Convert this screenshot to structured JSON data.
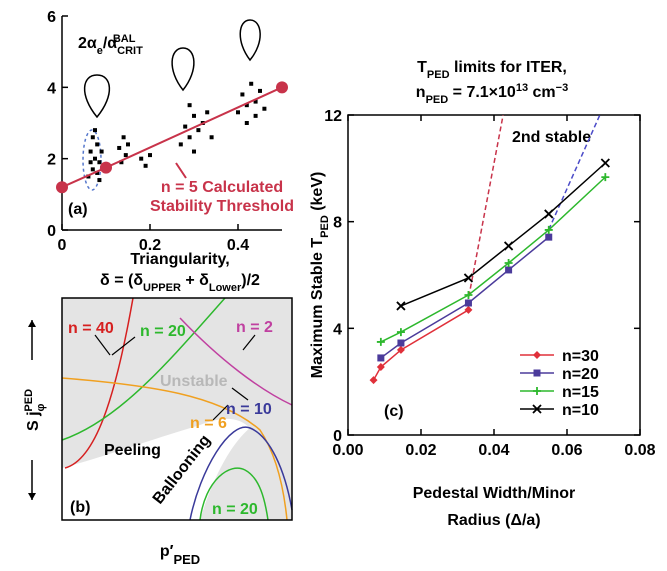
{
  "chart_data": [
    {
      "type": "scatter",
      "title_parts": [
        "2α",
        "e",
        "/α",
        "CRIT",
        "BAL"
      ],
      "x": [
        0.06,
        0.065,
        0.07,
        0.07,
        0.075,
        0.08,
        0.08,
        0.085,
        0.09,
        0.065,
        0.075,
        0.085,
        0.13,
        0.135,
        0.14,
        0.145,
        0.15,
        0.18,
        0.19,
        0.2,
        0.27,
        0.28,
        0.29,
        0.3,
        0.3,
        0.31,
        0.32,
        0.33,
        0.34,
        0.29,
        0.4,
        0.41,
        0.42,
        0.43,
        0.44,
        0.45,
        0.46,
        0.42,
        0.44
      ],
      "y": [
        1.5,
        2.2,
        1.7,
        2.6,
        2.0,
        1.6,
        2.4,
        1.9,
        2.2,
        1.9,
        2.8,
        1.4,
        2.3,
        1.9,
        2.6,
        2.1,
        2.4,
        2.0,
        1.8,
        2.1,
        2.4,
        2.9,
        2.6,
        3.2,
        2.2,
        2.8,
        3.0,
        3.3,
        2.6,
        3.5,
        3.3,
        3.8,
        3.0,
        4.1,
        3.6,
        3.9,
        3.4,
        3.5,
        3.2
      ],
      "color": "#000000",
      "threshold": {
        "x": [
          0,
          0.1,
          0.5
        ],
        "y": [
          1.2,
          1.75,
          4.0
        ],
        "color": "#c8334a"
      },
      "annotation": [
        "n = 5 Calculated",
        "Stability Threshold"
      ],
      "panel_label": "(a)",
      "xlabel": "Triangularity,",
      "xlabel_parts": [
        "δ = (δ",
        "UPPER",
        " + δ",
        "Lower",
        ")/2"
      ],
      "xlim": [
        0,
        0.5
      ],
      "ylim": [
        0,
        6
      ],
      "xticks": [
        0,
        0.2,
        0.4
      ],
      "yticks": [
        0,
        2,
        4,
        6
      ]
    },
    {
      "type": "diagram",
      "labels": [
        "n = 40",
        "n = 20",
        "n = 2",
        "Unstable",
        "Peeling",
        "n = 6",
        "n = 10",
        "Ballooning",
        "n = 20"
      ],
      "panel_label": "(b)",
      "ylabel_parts": [
        "S j",
        "φ",
        "PED"
      ],
      "xlabel_parts": [
        "p′",
        "PED"
      ]
    },
    {
      "type": "line",
      "title_line1": [
        "T",
        "PED",
        " limits for ITER,"
      ],
      "title_line2": [
        "n",
        "PED",
        " = 7.1×10",
        "13",
        " cm",
        "−3"
      ],
      "ylabel_parts": [
        "Maximum Stable T",
        "PED",
        " (keV)"
      ],
      "xlabel_lines": [
        "Pedestal Width/Minor",
        "Radius (Δ/a)"
      ],
      "annotation": "2nd stable",
      "panel_label": "(c)",
      "series": [
        {
          "name": "n=30",
          "color": "#e0303a",
          "marker": "diamond",
          "x": [
            0.007,
            0.009,
            0.0145,
            0.033
          ],
          "values": [
            2.06,
            2.55,
            3.19,
            4.69
          ]
        },
        {
          "name": "n=20",
          "color": "#4b3b9b",
          "marker": "square",
          "x": [
            0.009,
            0.0145,
            0.033,
            0.044,
            0.055
          ],
          "values": [
            2.89,
            3.45,
            4.95,
            6.19,
            7.42
          ]
        },
        {
          "name": "n=15",
          "color": "#2db82d",
          "marker": "plus",
          "x": [
            0.009,
            0.0145,
            0.033,
            0.044,
            0.055,
            0.0705
          ],
          "values": [
            3.49,
            3.86,
            5.25,
            6.45,
            7.69,
            9.67
          ]
        },
        {
          "name": "n=10",
          "color": "#000000",
          "marker": "cross",
          "x": [
            0.0145,
            0.033,
            0.044,
            0.055,
            0.0705
          ],
          "values": [
            4.84,
            5.89,
            7.09,
            8.29,
            10.2
          ]
        }
      ],
      "boundaries": [
        {
          "color": "#c8334a",
          "x": [
            0.0327,
            0.0425
          ],
          "values": [
            4.9,
            12
          ]
        },
        {
          "color": "#4b4bc8",
          "x": [
            0.055,
            0.069
          ],
          "values": [
            7.7,
            12
          ]
        }
      ],
      "xlim": [
        0,
        0.08
      ],
      "ylim": [
        0,
        12
      ],
      "xticks": [
        {
          "value": 0,
          "label": "0.00"
        },
        {
          "value": 0.02,
          "label": "0.02"
        },
        {
          "value": 0.04,
          "label": "0.04"
        },
        {
          "value": 0.06,
          "label": "0.06"
        },
        {
          "value": 0.08,
          "label": "0.08"
        }
      ],
      "yticks": [
        0,
        4,
        8,
        12
      ],
      "legend": "lower right"
    }
  ]
}
